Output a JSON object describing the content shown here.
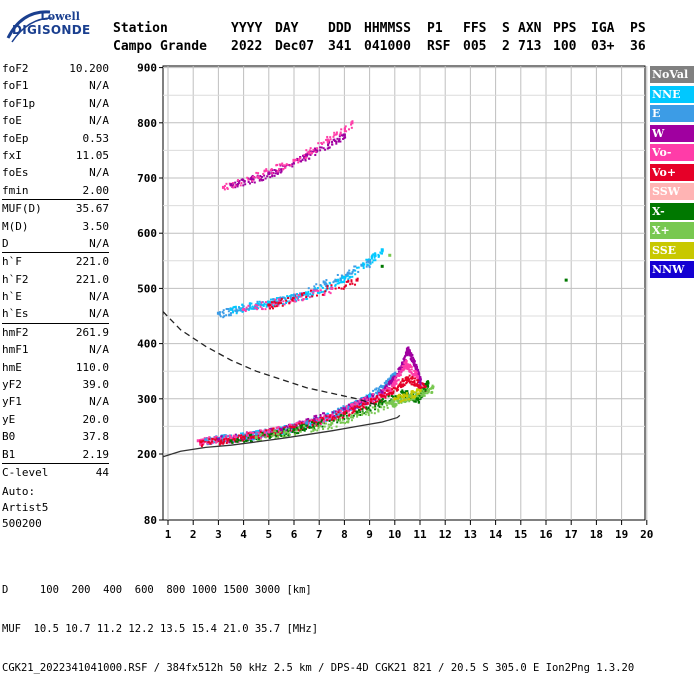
{
  "logo": {
    "line1": "Lowell",
    "line2": "DIGISONDE"
  },
  "header": {
    "row1": [
      "Station",
      "YYYY",
      "DAY",
      "DDD",
      "HHMMSS",
      "P1",
      "FFS",
      "S",
      "AXN",
      "PPS",
      "IGA",
      "PS"
    ],
    "row2": [
      "Campo Grande",
      "2022",
      "Dec07",
      "341",
      "041000",
      "RSF",
      "005",
      "2",
      "713",
      "100",
      "03+",
      "36"
    ]
  },
  "params": [
    {
      "label": "foF2",
      "value": "10.200"
    },
    {
      "label": "foF1",
      "value": "N/A"
    },
    {
      "label": "foF1p",
      "value": "N/A"
    },
    {
      "label": "foE",
      "value": "N/A"
    },
    {
      "label": "foEp",
      "value": "0.53"
    },
    {
      "label": "fxI",
      "value": "11.05"
    },
    {
      "label": "foEs",
      "value": "N/A"
    },
    {
      "label": "fmin",
      "value": "2.00"
    },
    {
      "label": "MUF(D)",
      "value": "35.67",
      "sep": true
    },
    {
      "label": "M(D)",
      "value": "3.50"
    },
    {
      "label": "D",
      "value": "N/A"
    },
    {
      "label": "h`F",
      "value": "221.0",
      "sep": true
    },
    {
      "label": "h`F2",
      "value": "221.0"
    },
    {
      "label": "h`E",
      "value": "N/A"
    },
    {
      "label": "h`Es",
      "value": "N/A"
    },
    {
      "label": "hmF2",
      "value": "261.9",
      "sep": true
    },
    {
      "label": "hmF1",
      "value": "N/A"
    },
    {
      "label": "hmE",
      "value": "110.0"
    },
    {
      "label": "yF2",
      "value": "39.0"
    },
    {
      "label": "yF1",
      "value": "N/A"
    },
    {
      "label": "yE",
      "value": "20.0"
    },
    {
      "label": "B0",
      "value": "37.8"
    },
    {
      "label": "B1",
      "value": "2.19"
    },
    {
      "label": "C-level",
      "value": "44",
      "sep": true
    }
  ],
  "auto": {
    "line1": "Auto:",
    "line2": "Artist5",
    "line3": "500200"
  },
  "legend": [
    {
      "label": "NoVal",
      "color": "#808080"
    },
    {
      "label": "NNE",
      "color": "#00c8ff"
    },
    {
      "label": "E",
      "color": "#3c9ce6"
    },
    {
      "label": "W",
      "color": "#a000a0"
    },
    {
      "label": "Vo-",
      "color": "#ff3ca8"
    },
    {
      "label": "Vo+",
      "color": "#e60028"
    },
    {
      "label": "SSW",
      "color": "#ffb4b4"
    },
    {
      "label": "X-",
      "color": "#007800"
    },
    {
      "label": "X+",
      "color": "#78c850"
    },
    {
      "label": "SSE",
      "color": "#c8c800"
    },
    {
      "label": "NNW",
      "color": "#1400d2"
    }
  ],
  "bottom": {
    "line1": "D     100  200  400  600  800 1000 1500 3000 [km]",
    "line2": "MUF  10.5 10.7 11.2 12.2 13.5 15.4 21.0 35.7 [MHz]",
    "line3": "CGK21_2022341041000.RSF / 384fx512h 50 kHz 2.5 km / DPS-4D CGK21 821 / 20.5 S 305.0 E Ion2Png 1.3.20"
  },
  "chart_data": {
    "type": "scatter",
    "x_ticks": [
      1,
      2,
      3,
      4,
      5,
      6,
      7,
      8,
      9,
      10,
      11,
      12,
      13,
      14,
      15,
      16,
      17,
      18,
      19,
      20
    ],
    "y_ticks": [
      80,
      200,
      300,
      400,
      500,
      600,
      700,
      800,
      900
    ],
    "xlim": [
      0.8,
      20
    ],
    "ylim": [
      80,
      900
    ],
    "grid": true,
    "legend_position": "right",
    "series": [
      {
        "name": "NNE",
        "color": "#00c8ff",
        "points": [
          [
            3.0,
            228
          ],
          [
            4.0,
            233
          ],
          [
            5.0,
            240
          ],
          [
            6.0,
            250
          ],
          [
            7.0,
            262
          ],
          [
            8.0,
            282
          ],
          [
            9.0,
            305
          ],
          [
            3.5,
            462
          ],
          [
            5.0,
            475
          ],
          [
            6.5,
            490
          ],
          [
            8.0,
            520
          ],
          [
            9.5,
            570
          ]
        ]
      },
      {
        "name": "E",
        "color": "#3c9ce6",
        "points": [
          [
            2.5,
            226
          ],
          [
            4.5,
            236
          ],
          [
            6.5,
            256
          ],
          [
            8.5,
            292
          ],
          [
            9.5,
            322
          ],
          [
            10.0,
            345
          ],
          [
            3.0,
            455
          ],
          [
            6.0,
            487
          ],
          [
            9.0,
            548
          ]
        ]
      },
      {
        "name": "W",
        "color": "#a000a0",
        "points": [
          [
            3.0,
            227
          ],
          [
            5.5,
            244
          ],
          [
            8.0,
            282
          ],
          [
            9.5,
            312
          ],
          [
            10.2,
            355
          ],
          [
            10.5,
            390
          ],
          [
            10.8,
            360
          ],
          [
            11.0,
            330
          ],
          [
            3.5,
            688
          ],
          [
            5.0,
            708
          ],
          [
            6.5,
            742
          ],
          [
            8.0,
            778
          ]
        ]
      },
      {
        "name": "Vo-",
        "color": "#ff3ca8",
        "points": [
          [
            2.2,
            224
          ],
          [
            3.5,
            229
          ],
          [
            5.0,
            240
          ],
          [
            7.0,
            262
          ],
          [
            8.5,
            291
          ],
          [
            9.8,
            318
          ],
          [
            10.4,
            365
          ],
          [
            10.9,
            340
          ],
          [
            3.2,
            683
          ],
          [
            6.0,
            732
          ],
          [
            8.3,
            800
          ],
          [
            4.0,
            462
          ],
          [
            7.5,
            500
          ]
        ]
      },
      {
        "name": "Vo+",
        "color": "#e60028",
        "points": [
          [
            2.3,
            222
          ],
          [
            4.0,
            231
          ],
          [
            6.0,
            249
          ],
          [
            8.0,
            274
          ],
          [
            9.5,
            305
          ],
          [
            10.5,
            338
          ],
          [
            11.2,
            322
          ],
          [
            5.0,
            470
          ],
          [
            8.5,
            515
          ]
        ]
      },
      {
        "name": "X-",
        "color": "#007800",
        "points": [
          [
            3.5,
            224
          ],
          [
            6.0,
            244
          ],
          [
            8.5,
            276
          ],
          [
            10.3,
            312
          ],
          [
            10.9,
            300
          ],
          [
            11.3,
            330
          ],
          [
            9.5,
            540
          ],
          [
            16.8,
            515
          ]
        ]
      },
      {
        "name": "X+",
        "color": "#78c850",
        "points": [
          [
            4.5,
            230
          ],
          [
            7.5,
            256
          ],
          [
            9.8,
            292
          ],
          [
            10.6,
            305
          ],
          [
            11.5,
            320
          ],
          [
            9.8,
            560
          ]
        ]
      },
      {
        "name": "SSE",
        "color": "#c8c800",
        "points": [
          [
            10.0,
            300
          ],
          [
            11.0,
            315
          ]
        ]
      }
    ],
    "curves": [
      {
        "name": "virtual-height-profile",
        "style": "dashed",
        "points": [
          [
            0.8,
            458
          ],
          [
            1.5,
            425
          ],
          [
            2.5,
            395
          ],
          [
            3.5,
            370
          ],
          [
            4.5,
            350
          ],
          [
            5.5,
            335
          ],
          [
            6.5,
            320
          ],
          [
            7.5,
            310
          ],
          [
            8.5,
            300
          ],
          [
            9.2,
            290
          ]
        ]
      },
      {
        "name": "true-height-profile",
        "style": "solid",
        "points": [
          [
            0.8,
            195
          ],
          [
            1.5,
            205
          ],
          [
            2.5,
            212
          ],
          [
            3.5,
            216
          ],
          [
            4.5,
            222
          ],
          [
            5.5,
            228
          ],
          [
            6.5,
            235
          ],
          [
            7.5,
            242
          ],
          [
            8.5,
            250
          ],
          [
            9.5,
            258
          ],
          [
            10.1,
            266
          ],
          [
            10.2,
            270
          ]
        ]
      }
    ]
  }
}
